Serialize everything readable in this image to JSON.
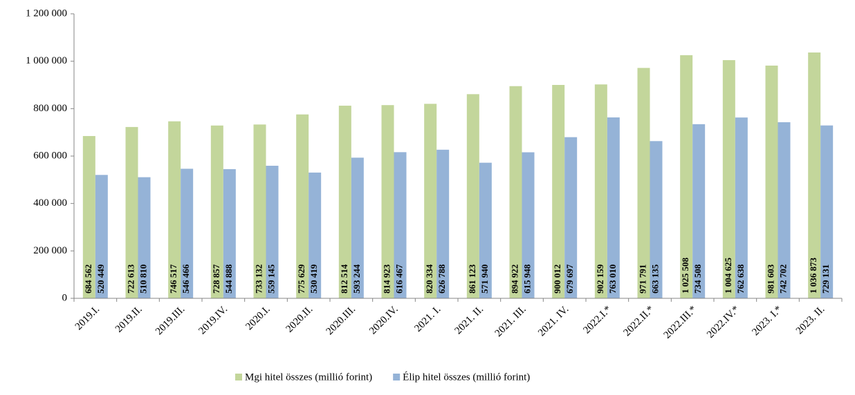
{
  "chart_data": {
    "type": "bar",
    "categories": [
      "2019.I.",
      "2019.II.",
      "2019.III.",
      "2019.IV.",
      "2020.I.",
      "2020.II.",
      "2020.III.",
      "2020.IV.",
      "2021. I.",
      "2021. II.",
      "2021. III.",
      "2021. IV.",
      "2022.I.*",
      "2022.II.*",
      "2022.III.*",
      "2022.IV.*",
      "2023. I.*",
      "2023. II."
    ],
    "series": [
      {
        "name": "Mgi hitel összes (millió forint)",
        "color": "#c3d69b",
        "values": [
          684562,
          722613,
          746517,
          728857,
          733132,
          775629,
          812514,
          814923,
          820334,
          861123,
          894922,
          900012,
          902159,
          971791,
          1025508,
          1004625,
          981603,
          1036873
        ],
        "value_labels": [
          "684 562",
          "722 613",
          "746 517",
          "728 857",
          "733 132",
          "775 629",
          "812 514",
          "814 923",
          "820 334",
          "861 123",
          "894 922",
          "900 012",
          "902 159",
          "971 791",
          "1 025 508",
          "1 004 625",
          "981 603",
          "1 036 873"
        ]
      },
      {
        "name": "Élip hitel összes (millió forint)",
        "color": "#95b3d7",
        "values": [
          520449,
          510810,
          546466,
          544888,
          559145,
          530419,
          593244,
          616467,
          626788,
          571940,
          615948,
          679697,
          763010,
          663135,
          734508,
          762638,
          742702,
          729131
        ],
        "value_labels": [
          "520 449",
          "510 810",
          "546 466",
          "544 888",
          "559 145",
          "530 419",
          "593 244",
          "616 467",
          "626 788",
          "571 940",
          "615 948",
          "679 697",
          "763 010",
          "663 135",
          "734 508",
          "762 638",
          "742 702",
          "729 131"
        ]
      }
    ],
    "ylim": [
      0,
      1200000
    ],
    "yticks": [
      0,
      {
        "value": 200000,
        "label": "200 000"
      },
      {
        "value": 400000,
        "label": "400 000"
      },
      {
        "value": 600000,
        "label": "600 000"
      },
      {
        "value": 800000,
        "label": "800 000"
      },
      {
        "value": 1000000,
        "label": "1 000 000"
      },
      {
        "value": 1200000,
        "label": "1 200 000"
      }
    ],
    "grid": false,
    "legend": "bottom"
  }
}
